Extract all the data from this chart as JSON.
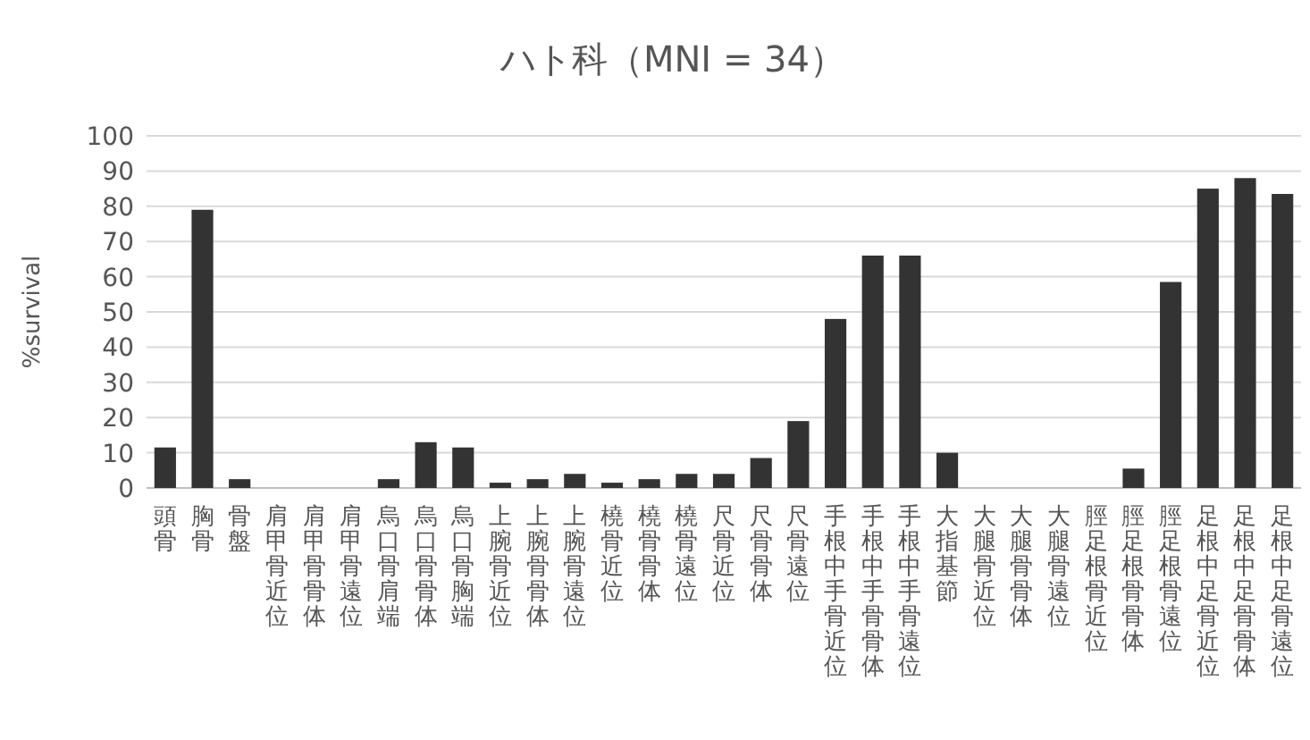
{
  "chart_data": {
    "type": "bar",
    "title": "ハト科（MNI = 34）",
    "ylabel": "%survival",
    "categories": [
      "頭骨",
      "胸骨",
      "骨盤",
      "肩甲骨近位",
      "肩甲骨骨体",
      "肩甲骨遠位",
      "烏口骨肩端",
      "烏口骨骨体",
      "烏口骨胸端",
      "上腕骨近位",
      "上腕骨骨体",
      "上腕骨遠位",
      "橈骨近位",
      "橈骨骨体",
      "橈骨遠位",
      "尺骨近位",
      "尺骨骨体",
      "尺骨遠位",
      "手根中手骨近位",
      "手根中手骨骨体",
      "手根中手骨遠位",
      "大指基節",
      "大腿骨近位",
      "大腿骨骨体",
      "大腿骨遠位",
      "脛足根骨近位",
      "脛足根骨骨体",
      "脛足根骨遠位",
      "足根中足骨近位",
      "足根中足骨骨体",
      "足根中足骨遠位"
    ],
    "values": [
      11.5,
      79,
      2.5,
      0,
      0,
      0,
      2.5,
      13,
      11.5,
      1.5,
      2.5,
      4,
      1.5,
      2.5,
      4,
      4,
      8.5,
      19,
      48,
      66,
      66,
      10,
      0,
      0,
      0,
      0,
      5.5,
      58.5,
      85,
      88,
      83.5
    ],
    "color": "#333333",
    "ylim": [
      0,
      100
    ],
    "yticks": [
      0,
      10,
      20,
      30,
      40,
      50,
      60,
      70,
      80,
      90,
      100
    ],
    "grid": "y"
  }
}
